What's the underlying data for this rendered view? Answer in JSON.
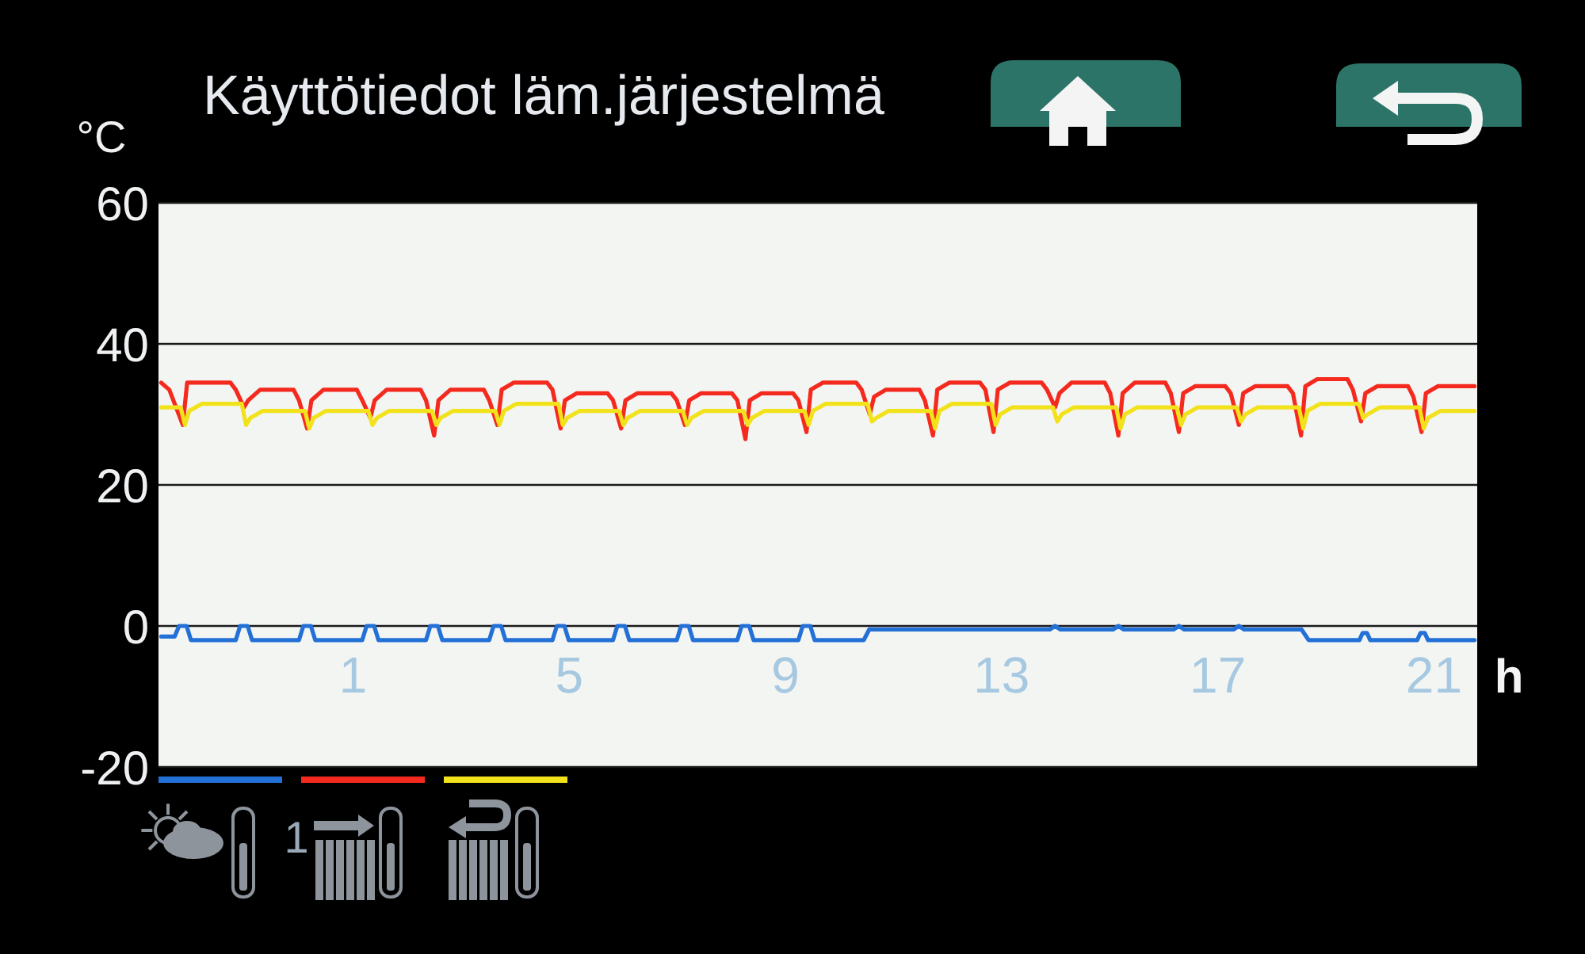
{
  "chart_data": {
    "type": "line",
    "title": "Käyttötiedot läm.järjestelmä",
    "xlabel": "h",
    "ylabel": "°C",
    "xlim": [
      -2.6,
      21.8
    ],
    "ylim": [
      -20,
      60
    ],
    "xticks": [
      1,
      5,
      9,
      13,
      17,
      21
    ],
    "yticks": [
      -20,
      0,
      20,
      40,
      60
    ],
    "grid": "y",
    "annotations": [
      "1"
    ],
    "series": [
      {
        "color": "#2370d6",
        "x": [
          -2.55,
          -2.3,
          -2.22,
          -2.08,
          -2,
          -1.17,
          -1.09,
          -0.95,
          -0.87,
          0,
          0.08,
          0.22,
          0.3,
          1.17,
          1.25,
          1.39,
          1.47,
          2.35,
          2.43,
          2.57,
          2.65,
          3.52,
          3.6,
          3.74,
          3.82,
          4.69,
          4.77,
          4.91,
          4.99,
          5.81,
          5.89,
          6.03,
          6.11,
          6.99,
          7.07,
          7.21,
          7.29,
          8.11,
          8.19,
          8.33,
          8.41,
          9.24,
          9.32,
          9.46,
          9.54,
          10.45,
          10.55,
          13.89,
          13.99,
          14.09,
          15.06,
          15.16,
          15.26,
          16.18,
          16.28,
          16.38,
          17.29,
          17.39,
          17.49,
          18.55,
          18.68,
          19.62,
          19.68,
          19.76,
          19.82,
          20.69,
          20.75,
          20.83,
          20.89,
          21.75
        ],
        "values": [
          -1.5,
          -1.5,
          0,
          0,
          -2,
          -2,
          0,
          0,
          -2,
          -2,
          0,
          0,
          -2,
          -2,
          0,
          0,
          -2,
          -2,
          0,
          0,
          -2,
          -2,
          0,
          0,
          -2,
          -2,
          0,
          0,
          -2,
          -2,
          0,
          0,
          -2,
          -2,
          0,
          0,
          -2,
          -2,
          0,
          0,
          -2,
          -2,
          0,
          0,
          -2,
          -2,
          -0.5,
          -0.5,
          0,
          -0.5,
          -0.5,
          0,
          -0.5,
          -0.5,
          0,
          -0.5,
          -0.5,
          0,
          -0.5,
          -0.5,
          -2,
          -2,
          -1,
          -1,
          -2,
          -2,
          -1,
          -1,
          -2,
          -2
        ]
      },
      {
        "color": "#f52a1e",
        "x": [
          -2.55,
          -2.4,
          -2.15,
          -2.07,
          -1.85,
          -1.27,
          -1.17,
          -1.02,
          -0.94,
          -0.72,
          -0.1,
          0,
          0.15,
          0.23,
          0.45,
          1.07,
          1.17,
          1.32,
          1.4,
          1.62,
          2.25,
          2.35,
          2.5,
          2.58,
          2.8,
          3.42,
          3.52,
          3.67,
          3.75,
          3.97,
          4.59,
          4.69,
          4.84,
          4.92,
          5.14,
          5.71,
          5.81,
          5.96,
          6.04,
          6.26,
          6.89,
          6.99,
          7.14,
          7.22,
          7.44,
          8.01,
          8.11,
          8.26,
          8.34,
          8.56,
          9.14,
          9.24,
          9.39,
          9.47,
          9.69,
          10.31,
          10.41,
          10.56,
          10.64,
          10.86,
          11.48,
          11.58,
          11.73,
          11.81,
          12.03,
          12.6,
          12.7,
          12.85,
          12.93,
          13.15,
          13.74,
          13.84,
          13.99,
          14.07,
          14.29,
          14.91,
          15.01,
          15.16,
          15.24,
          15.46,
          16.03,
          16.13,
          16.28,
          16.36,
          16.58,
          17.14,
          17.24,
          17.39,
          17.47,
          17.69,
          18.29,
          18.39,
          18.54,
          18.62,
          18.84,
          19.4,
          19.5,
          19.65,
          19.73,
          19.95,
          20.52,
          20.62,
          20.77,
          20.85,
          21.07,
          21.75
        ],
        "values": [
          34.5,
          33.5,
          28.5,
          34.5,
          34.5,
          34.5,
          33.5,
          31,
          32,
          33.5,
          33.5,
          32,
          28,
          32,
          33.5,
          33.5,
          32,
          29.5,
          32,
          33.5,
          33.5,
          32,
          27,
          32,
          33.5,
          33.5,
          32,
          28.5,
          33.5,
          34.5,
          34.5,
          33.5,
          28,
          32,
          33,
          33,
          32,
          28,
          32,
          33,
          33,
          32,
          28.5,
          32,
          33,
          33,
          32,
          26.5,
          32,
          33,
          33,
          32,
          27.5,
          33.5,
          34.5,
          34.5,
          33.5,
          30,
          32.5,
          33.5,
          33.5,
          32,
          27,
          33.5,
          34.5,
          34.5,
          33.5,
          27.5,
          33.5,
          34.5,
          34.5,
          33.5,
          31,
          33,
          34.5,
          34.5,
          33,
          27,
          33,
          34.5,
          34.5,
          33,
          27.5,
          33,
          34,
          34,
          33,
          28.5,
          33,
          34,
          34,
          33,
          27,
          34,
          35,
          35,
          33.5,
          29,
          33,
          34,
          34,
          32.5,
          27.5,
          33,
          34,
          34
        ]
      },
      {
        "color": "#f2e21c",
        "x": [
          -2.55,
          -2.19,
          -2.11,
          -2.03,
          -1.8,
          -1.06,
          -0.98,
          -0.9,
          -0.67,
          0.11,
          0.19,
          0.27,
          0.5,
          1.28,
          1.36,
          1.44,
          1.67,
          2.46,
          2.54,
          2.62,
          2.85,
          3.63,
          3.71,
          3.79,
          4.02,
          4.8,
          4.88,
          4.96,
          5.19,
          5.92,
          6,
          6.08,
          6.31,
          7.1,
          7.18,
          7.26,
          7.49,
          8.22,
          8.3,
          8.38,
          8.61,
          9.35,
          9.43,
          9.51,
          9.74,
          10.52,
          10.6,
          10.68,
          10.91,
          11.69,
          11.77,
          11.85,
          12.08,
          12.81,
          12.89,
          12.97,
          13.2,
          13.95,
          14.03,
          14.11,
          14.34,
          15.12,
          15.2,
          15.28,
          15.51,
          16.24,
          16.32,
          16.4,
          16.63,
          17.35,
          17.43,
          17.51,
          17.74,
          18.5,
          18.58,
          18.66,
          18.89,
          19.61,
          19.69,
          19.77,
          20,
          20.73,
          20.81,
          20.89,
          21.12,
          21.75
        ],
        "values": [
          31,
          31,
          28.5,
          30.5,
          31.5,
          31.5,
          28.5,
          29.5,
          30.5,
          30.5,
          28,
          29.5,
          30.5,
          30.5,
          28.5,
          29.5,
          30.5,
          30.5,
          28.5,
          29.5,
          30.5,
          30.5,
          28.5,
          30.5,
          31.5,
          31.5,
          28.5,
          29.5,
          30.5,
          30.5,
          28.5,
          29.5,
          30.5,
          30.5,
          28.5,
          29.5,
          30.5,
          30.5,
          28.5,
          29.5,
          30.5,
          30.5,
          28.5,
          30.5,
          31.5,
          31.5,
          29,
          29.5,
          30.5,
          30.5,
          28,
          30.5,
          31.5,
          31.5,
          28.5,
          30,
          31,
          31,
          29,
          30,
          31,
          31,
          28,
          30,
          31,
          31,
          28.5,
          30,
          31,
          31,
          29,
          30,
          31,
          31,
          28,
          30.5,
          31.5,
          31.5,
          29.5,
          30,
          31,
          31,
          28,
          29.5,
          30.5,
          30.5
        ]
      }
    ]
  }
}
